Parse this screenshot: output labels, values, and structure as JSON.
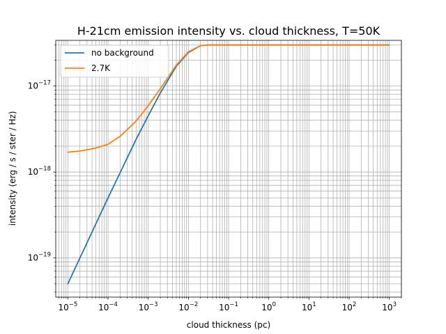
{
  "chart_data": {
    "type": "line",
    "title": "H-21cm emission intensity vs. cloud thickness, T=50K",
    "xlabel": "cloud thickness (pc)",
    "ylabel": "intensity (erg / s / ster / Hz)",
    "xscale": "log",
    "yscale": "log",
    "xlim": [
      5e-06,
      2000.0
    ],
    "ylim": [
      3.5e-20,
      3.4e-17
    ],
    "xticks": [
      {
        "value": 1e-05,
        "base": "10",
        "exp": "−5"
      },
      {
        "value": 0.0001,
        "base": "10",
        "exp": "−4"
      },
      {
        "value": 0.001,
        "base": "10",
        "exp": "−3"
      },
      {
        "value": 0.01,
        "base": "10",
        "exp": "−2"
      },
      {
        "value": 0.1,
        "base": "10",
        "exp": "−1"
      },
      {
        "value": 1.0,
        "base": "10",
        "exp": "0"
      },
      {
        "value": 10.0,
        "base": "10",
        "exp": "1"
      },
      {
        "value": 100.0,
        "base": "10",
        "exp": "2"
      },
      {
        "value": 1000.0,
        "base": "10",
        "exp": "3"
      }
    ],
    "yticks": [
      {
        "value": 1e-19,
        "base": "10",
        "exp": "−19"
      },
      {
        "value": 1e-18,
        "base": "10",
        "exp": "−18"
      },
      {
        "value": 1e-17,
        "base": "10",
        "exp": "−17"
      }
    ],
    "grid": true,
    "legend_position": "top-left",
    "series": [
      {
        "name": "no background",
        "color": "#1f77b4",
        "x": [
          1e-05,
          2e-05,
          5e-05,
          0.0001,
          0.0002,
          0.0005,
          0.001,
          0.002,
          0.005,
          0.01,
          0.02,
          0.03,
          0.05,
          0.1,
          1.0,
          10.0,
          100.0,
          1000.0
        ],
        "y": [
          5e-20,
          1e-19,
          2.5e-19,
          5e-19,
          9.8e-19,
          2.4e-18,
          4.5e-18,
          8.3e-18,
          1.7e-17,
          2.45e-17,
          2.95e-17,
          3e-17,
          3e-17,
          3e-17,
          3e-17,
          3e-17,
          3e-17,
          3e-17
        ]
      },
      {
        "name": "2.7K",
        "color": "#ff7f0e",
        "x": [
          1e-05,
          2e-05,
          5e-05,
          0.0001,
          0.0002,
          0.0005,
          0.001,
          0.002,
          0.005,
          0.01,
          0.02,
          0.03,
          0.05,
          0.1,
          1.0,
          10.0,
          100.0,
          1000.0
        ],
        "y": [
          1.7e-18,
          1.75e-18,
          1.9e-18,
          2.1e-18,
          2.6e-18,
          3.9e-18,
          5.9e-18,
          9.3e-18,
          1.75e-17,
          2.5e-17,
          2.95e-17,
          3e-17,
          3e-17,
          3e-17,
          3e-17,
          3e-17,
          3e-17,
          3e-17
        ]
      }
    ]
  }
}
